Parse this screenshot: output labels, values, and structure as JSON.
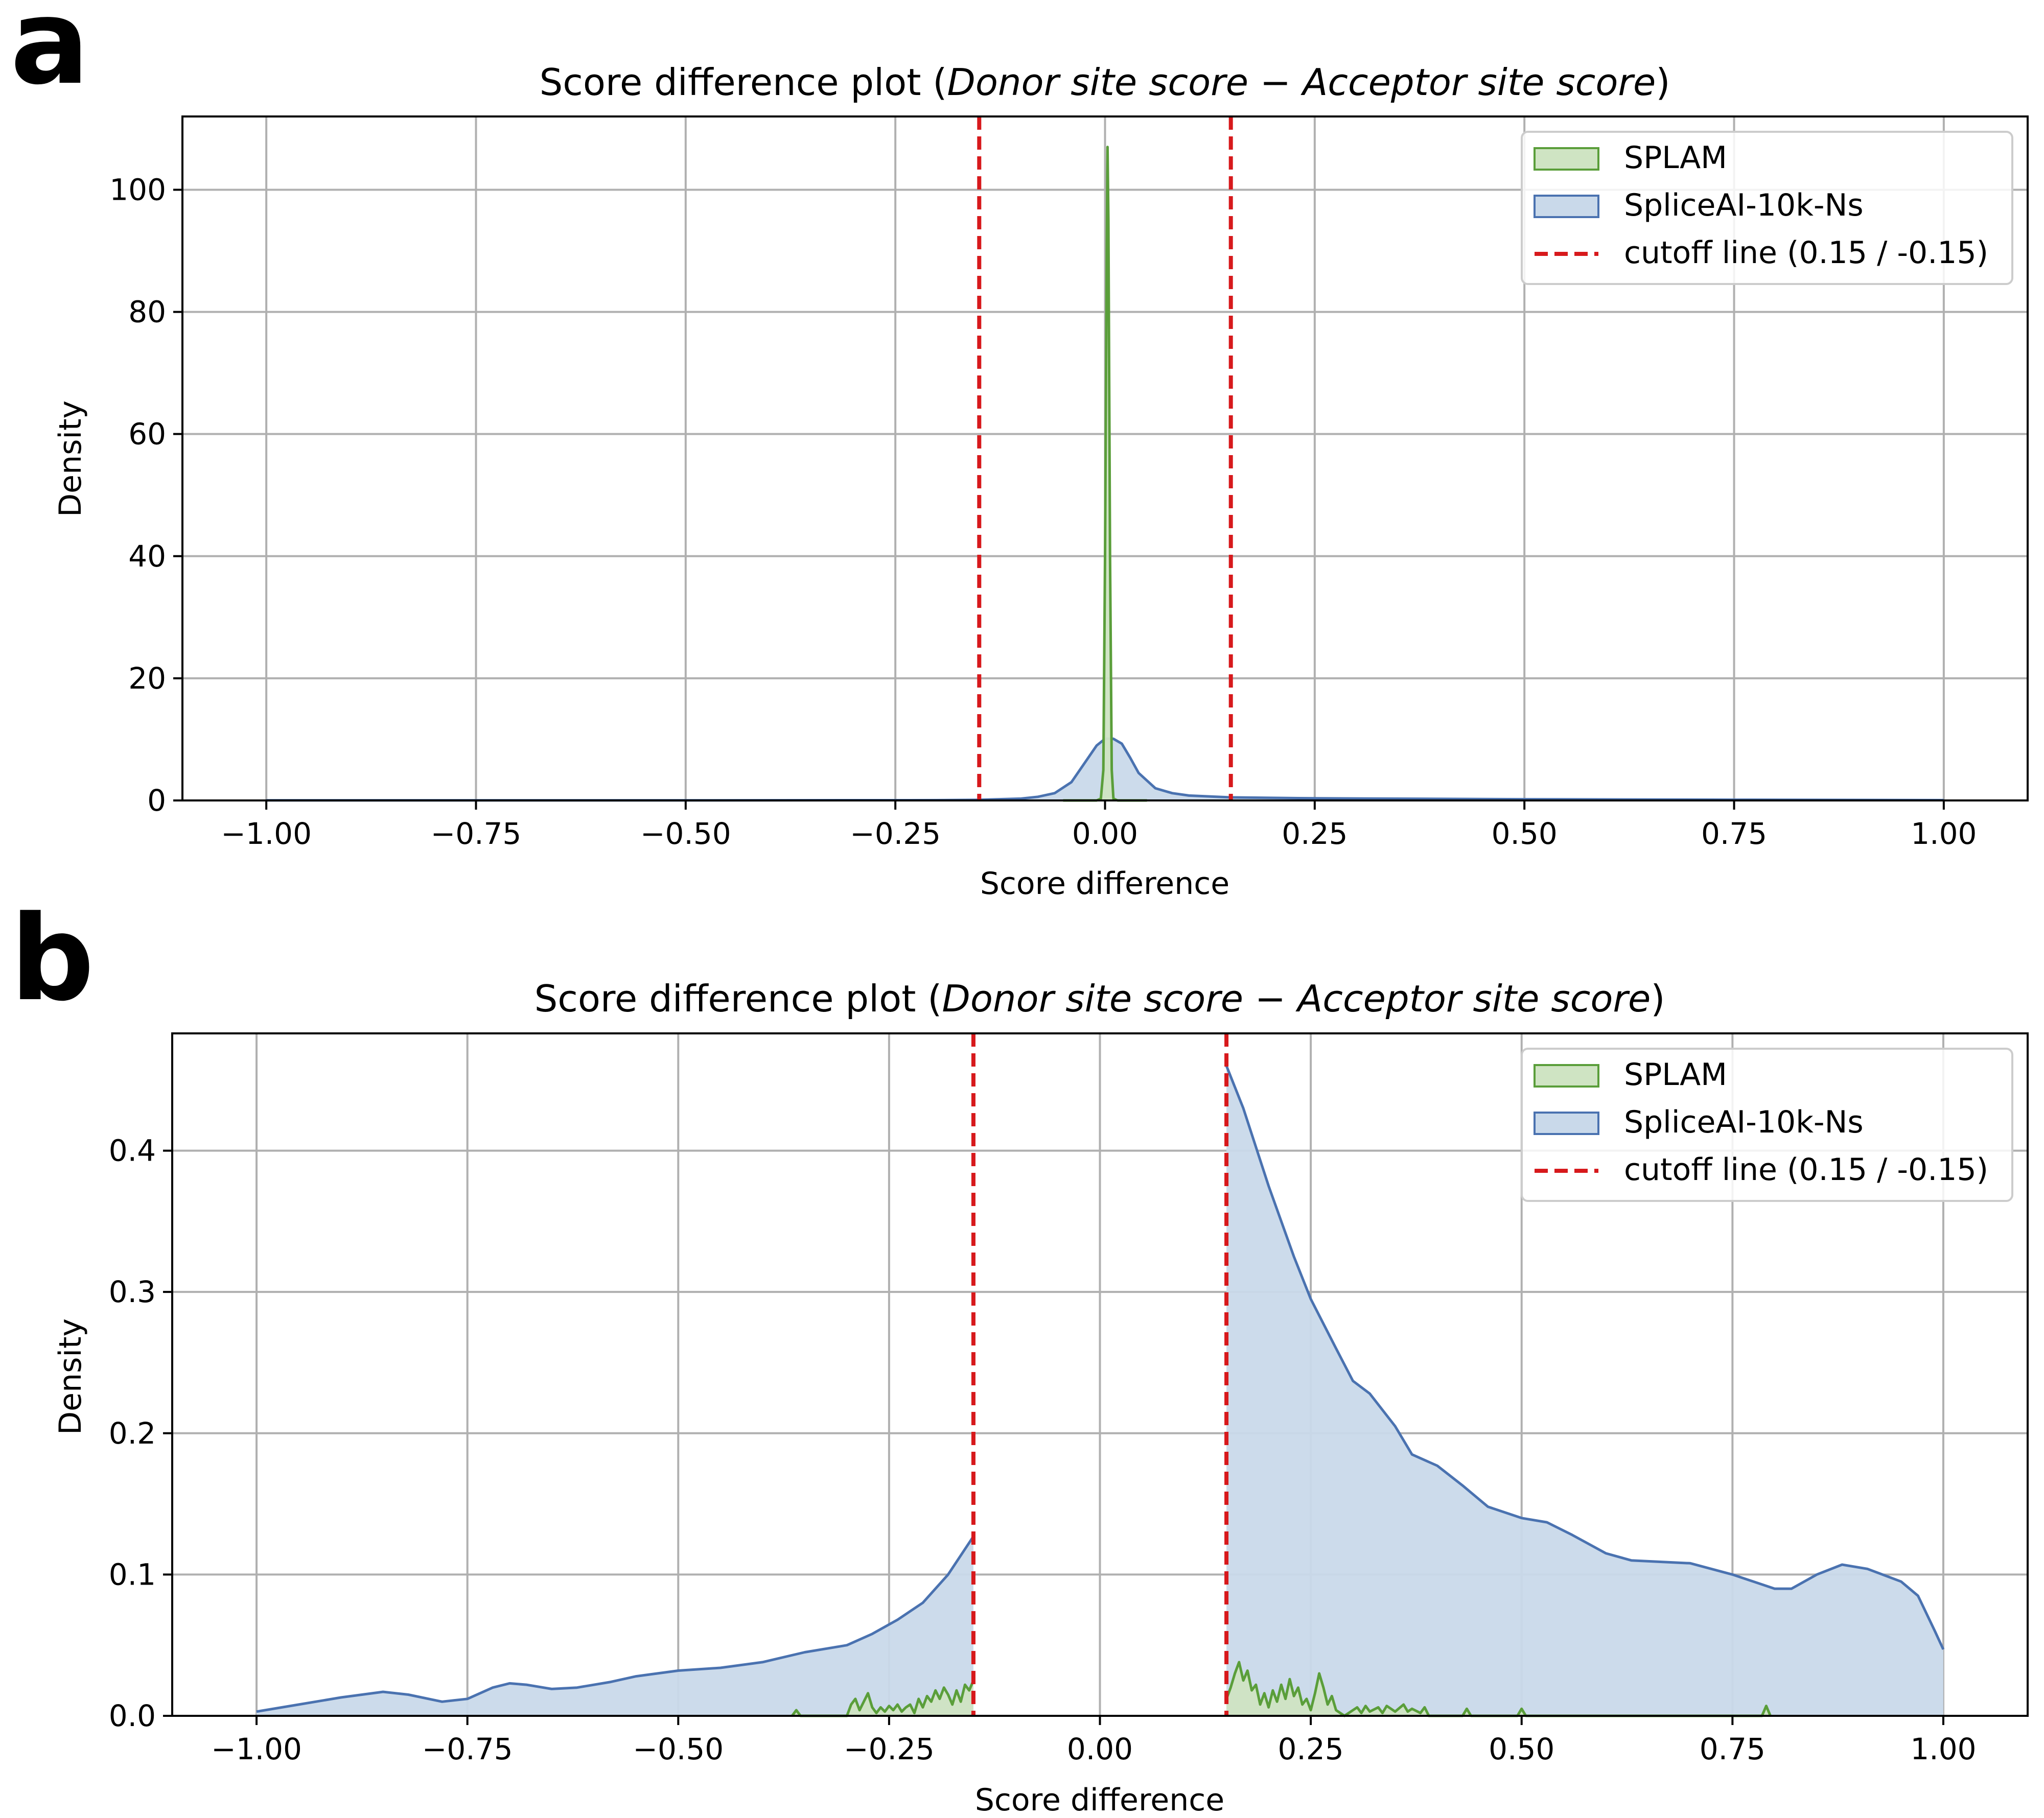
{
  "chart_data": [
    {
      "panel_label": "a",
      "type": "area",
      "title": "Score difference plot (Donor site score − Acceptor site score)",
      "title_parts": [
        "Score difference plot (",
        "Donor site score",
        " − ",
        "Acceptor site score",
        ")"
      ],
      "xlabel": "Score difference",
      "ylabel": "Density",
      "xlim": [
        -1.1,
        1.1
      ],
      "ylim": [
        0,
        112
      ],
      "xticks": [
        -1.0,
        -0.75,
        -0.5,
        -0.25,
        0.0,
        0.25,
        0.5,
        0.75,
        1.0
      ],
      "xtick_labels": [
        "−1.00",
        "−0.75",
        "−0.50",
        "−0.25",
        "0.00",
        "0.25",
        "0.50",
        "0.75",
        "1.00"
      ],
      "yticks": [
        0,
        20,
        40,
        60,
        80,
        100
      ],
      "ytick_labels": [
        "0",
        "20",
        "40",
        "60",
        "80",
        "100"
      ],
      "grid": true,
      "legend_position": "top-right",
      "legend": [
        "SPLAM",
        "SpliceAI-10k-Ns",
        "cutoff line (0.15 / -0.15)"
      ],
      "cutoffs": [
        -0.15,
        0.15
      ],
      "series": [
        {
          "name": "SpliceAI-10k-Ns",
          "color": "#4a72b0",
          "fill": "#c9d9ea",
          "points": [
            [
              -1.0,
              0.02
            ],
            [
              -0.5,
              0.02
            ],
            [
              -0.2,
              0.05
            ],
            [
              -0.15,
              0.1
            ],
            [
              -0.1,
              0.3
            ],
            [
              -0.08,
              0.6
            ],
            [
              -0.06,
              1.2
            ],
            [
              -0.04,
              3.0
            ],
            [
              -0.02,
              7.0
            ],
            [
              -0.01,
              9.0
            ],
            [
              0.0,
              10.1
            ],
            [
              0.01,
              10.1
            ],
            [
              0.02,
              9.3
            ],
            [
              0.03,
              7.0
            ],
            [
              0.04,
              4.5
            ],
            [
              0.06,
              2.0
            ],
            [
              0.08,
              1.2
            ],
            [
              0.1,
              0.8
            ],
            [
              0.15,
              0.5
            ],
            [
              0.25,
              0.35
            ],
            [
              0.5,
              0.2
            ],
            [
              0.75,
              0.12
            ],
            [
              1.0,
              0.05
            ]
          ]
        },
        {
          "name": "SPLAM",
          "color": "#5a9e3a",
          "fill": "#cfe4c3",
          "points": [
            [
              -0.05,
              0
            ],
            [
              -0.01,
              0
            ],
            [
              -0.005,
              0.3
            ],
            [
              -0.002,
              5
            ],
            [
              0.0,
              40
            ],
            [
              0.002,
              90
            ],
            [
              0.003,
              107
            ],
            [
              0.004,
              95
            ],
            [
              0.006,
              40
            ],
            [
              0.008,
              5
            ],
            [
              0.01,
              0.3
            ],
            [
              0.015,
              0
            ],
            [
              0.05,
              0
            ]
          ]
        }
      ]
    },
    {
      "panel_label": "b",
      "type": "area",
      "title": "Score difference plot (Donor site score − Acceptor site score)",
      "title_parts": [
        "Score difference plot (",
        "Donor site score",
        " − ",
        "Acceptor site score",
        ")"
      ],
      "xlabel": "Score difference",
      "ylabel": "Density",
      "xlim": [
        -1.1,
        1.1
      ],
      "ylim": [
        0,
        0.483
      ],
      "xticks": [
        -1.0,
        -0.75,
        -0.5,
        -0.25,
        0.0,
        0.25,
        0.5,
        0.75,
        1.0
      ],
      "xtick_labels": [
        "−1.00",
        "−0.75",
        "−0.50",
        "−0.25",
        "0.00",
        "0.25",
        "0.50",
        "0.75",
        "1.00"
      ],
      "yticks": [
        0.0,
        0.1,
        0.2,
        0.3,
        0.4
      ],
      "ytick_labels": [
        "0.0",
        "0.1",
        "0.2",
        "0.3",
        "0.4"
      ],
      "grid": true,
      "legend_position": "top-right",
      "legend": [
        "SPLAM",
        "SpliceAI-10k-Ns",
        "cutoff line (0.15 / -0.15)"
      ],
      "cutoffs": [
        -0.15,
        0.15
      ],
      "series": [
        {
          "name": "SpliceAI-10k-Ns",
          "color": "#4a72b0",
          "fill": "#c9d9ea",
          "segments": [
            [
              [
                -1.0,
                0.003
              ],
              [
                -0.95,
                0.008
              ],
              [
                -0.9,
                0.013
              ],
              [
                -0.85,
                0.017
              ],
              [
                -0.82,
                0.015
              ],
              [
                -0.78,
                0.01
              ],
              [
                -0.75,
                0.012
              ],
              [
                -0.72,
                0.02
              ],
              [
                -0.7,
                0.023
              ],
              [
                -0.68,
                0.022
              ],
              [
                -0.65,
                0.019
              ],
              [
                -0.62,
                0.02
              ],
              [
                -0.58,
                0.024
              ],
              [
                -0.55,
                0.028
              ],
              [
                -0.5,
                0.032
              ],
              [
                -0.45,
                0.034
              ],
              [
                -0.4,
                0.038
              ],
              [
                -0.35,
                0.045
              ],
              [
                -0.3,
                0.05
              ],
              [
                -0.27,
                0.058
              ],
              [
                -0.24,
                0.068
              ],
              [
                -0.21,
                0.08
              ],
              [
                -0.18,
                0.1
              ],
              [
                -0.16,
                0.118
              ],
              [
                -0.15,
                0.127
              ]
            ],
            [
              [
                0.15,
                0.46
              ],
              [
                0.17,
                0.43
              ],
              [
                0.2,
                0.375
              ],
              [
                0.23,
                0.325
              ],
              [
                0.25,
                0.295
              ],
              [
                0.28,
                0.26
              ],
              [
                0.3,
                0.237
              ],
              [
                0.32,
                0.228
              ],
              [
                0.35,
                0.205
              ],
              [
                0.37,
                0.185
              ],
              [
                0.4,
                0.177
              ],
              [
                0.43,
                0.163
              ],
              [
                0.46,
                0.148
              ],
              [
                0.5,
                0.14
              ],
              [
                0.53,
                0.137
              ],
              [
                0.56,
                0.128
              ],
              [
                0.6,
                0.115
              ],
              [
                0.63,
                0.11
              ],
              [
                0.7,
                0.108
              ],
              [
                0.75,
                0.1
              ],
              [
                0.8,
                0.09
              ],
              [
                0.82,
                0.09
              ],
              [
                0.85,
                0.1
              ],
              [
                0.88,
                0.107
              ],
              [
                0.91,
                0.104
              ],
              [
                0.95,
                0.095
              ],
              [
                0.97,
                0.085
              ],
              [
                0.99,
                0.06
              ],
              [
                1.0,
                0.047
              ]
            ]
          ]
        },
        {
          "name": "SPLAM",
          "color": "#5a9e3a",
          "fill": "#cfe4c3",
          "segments": [
            [
              [
                -0.365,
                0
              ],
              [
                -0.36,
                0.004
              ],
              [
                -0.355,
                0
              ],
              [
                -0.3,
                0
              ],
              [
                -0.295,
                0.008
              ],
              [
                -0.29,
                0.012
              ],
              [
                -0.285,
                0.004
              ],
              [
                -0.28,
                0.01
              ],
              [
                -0.275,
                0.016
              ],
              [
                -0.27,
                0.006
              ],
              [
                -0.265,
                0.002
              ],
              [
                -0.26,
                0.006
              ],
              [
                -0.255,
                0.003
              ],
              [
                -0.25,
                0.007
              ],
              [
                -0.245,
                0.004
              ],
              [
                -0.24,
                0.008
              ],
              [
                -0.235,
                0.003
              ],
              [
                -0.23,
                0.006
              ],
              [
                -0.225,
                0.008
              ],
              [
                -0.22,
                0.002
              ],
              [
                -0.215,
                0.012
              ],
              [
                -0.21,
                0.006
              ],
              [
                -0.205,
                0.014
              ],
              [
                -0.2,
                0.01
              ],
              [
                -0.195,
                0.018
              ],
              [
                -0.19,
                0.012
              ],
              [
                -0.185,
                0.02
              ],
              [
                -0.18,
                0.015
              ],
              [
                -0.175,
                0.008
              ],
              [
                -0.17,
                0.018
              ],
              [
                -0.165,
                0.01
              ],
              [
                -0.16,
                0.022
              ],
              [
                -0.155,
                0.018
              ],
              [
                -0.15,
                0.025
              ]
            ],
            [
              [
                0.15,
                0.012
              ],
              [
                0.155,
                0.02
              ],
              [
                0.16,
                0.03
              ],
              [
                0.165,
                0.038
              ],
              [
                0.17,
                0.025
              ],
              [
                0.175,
                0.032
              ],
              [
                0.18,
                0.018
              ],
              [
                0.185,
                0.022
              ],
              [
                0.19,
                0.008
              ],
              [
                0.195,
                0.016
              ],
              [
                0.2,
                0.006
              ],
              [
                0.205,
                0.018
              ],
              [
                0.21,
                0.01
              ],
              [
                0.215,
                0.022
              ],
              [
                0.22,
                0.012
              ],
              [
                0.225,
                0.026
              ],
              [
                0.23,
                0.014
              ],
              [
                0.235,
                0.02
              ],
              [
                0.24,
                0.008
              ],
              [
                0.245,
                0.012
              ],
              [
                0.25,
                0.004
              ],
              [
                0.255,
                0.016
              ],
              [
                0.26,
                0.03
              ],
              [
                0.265,
                0.02
              ],
              [
                0.27,
                0.008
              ],
              [
                0.275,
                0.014
              ],
              [
                0.28,
                0.004
              ],
              [
                0.29,
                0.0
              ],
              [
                0.3,
                0.004
              ],
              [
                0.305,
                0.006
              ],
              [
                0.31,
                0.002
              ],
              [
                0.315,
                0.007
              ],
              [
                0.32,
                0.003
              ],
              [
                0.33,
                0.006
              ],
              [
                0.335,
                0.002
              ],
              [
                0.34,
                0.007
              ],
              [
                0.35,
                0.003
              ],
              [
                0.36,
                0.008
              ],
              [
                0.365,
                0.003
              ],
              [
                0.37,
                0.005
              ],
              [
                0.38,
                0.002
              ],
              [
                0.385,
                0.006
              ],
              [
                0.39,
                0.0
              ],
              [
                0.43,
                0.0
              ],
              [
                0.435,
                0.005
              ],
              [
                0.44,
                0.0
              ],
              [
                0.495,
                0.0
              ],
              [
                0.5,
                0.005
              ],
              [
                0.505,
                0.0
              ],
              [
                0.785,
                0.0
              ],
              [
                0.79,
                0.007
              ],
              [
                0.795,
                0.0
              ]
            ]
          ]
        }
      ]
    }
  ]
}
